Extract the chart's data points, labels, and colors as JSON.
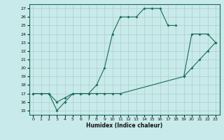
{
  "xlabel": "Humidex (Indice chaleur)",
  "background_color": "#c8eaea",
  "grid_color": "#b0cccc",
  "line_color": "#1a6b5a",
  "xlim": [
    -0.5,
    23.5
  ],
  "ylim": [
    14.5,
    27.5
  ],
  "xticks": [
    0,
    1,
    2,
    3,
    4,
    5,
    6,
    7,
    8,
    9,
    10,
    11,
    12,
    13,
    14,
    15,
    16,
    17,
    18,
    19,
    20,
    21,
    22,
    23
  ],
  "yticks": [
    15,
    16,
    17,
    18,
    19,
    20,
    21,
    22,
    23,
    24,
    25,
    26,
    27
  ],
  "line1_x": [
    0,
    1,
    2,
    3,
    4,
    5,
    6,
    7,
    8,
    9,
    10,
    11,
    12,
    13,
    14,
    15,
    16,
    17,
    18
  ],
  "line1_y": [
    17.0,
    17.0,
    17.0,
    15.0,
    16.0,
    17.0,
    17.0,
    17.0,
    18.0,
    20.0,
    24.0,
    26.0,
    26.0,
    26.0,
    27.0,
    27.0,
    27.0,
    25.0,
    25.0
  ],
  "line2_x": [
    0,
    1,
    2,
    3,
    4,
    5,
    6,
    7,
    8,
    9,
    10,
    11,
    19,
    20,
    21,
    22,
    23
  ],
  "line2_y": [
    17.0,
    17.0,
    17.0,
    16.0,
    16.5,
    17.0,
    17.0,
    17.0,
    17.0,
    17.0,
    17.0,
    17.0,
    19.0,
    20.0,
    21.0,
    22.0,
    23.0
  ],
  "line3_x": [
    19,
    20,
    21,
    22,
    23
  ],
  "line3_y": [
    19.0,
    24.0,
    24.0,
    24.0,
    23.0
  ]
}
